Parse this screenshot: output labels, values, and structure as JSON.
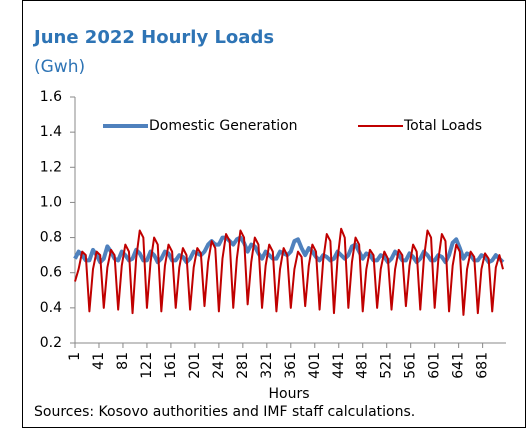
{
  "chart_data": {
    "type": "line",
    "title": "June 2022 Hourly Loads",
    "subtitle": "(Gwh)",
    "xlabel": "Hours",
    "source": "Sources: Kosovo authorities and IMF staff calculations.",
    "xlim": [
      1,
      720
    ],
    "xticks": [
      1,
      41,
      81,
      121,
      161,
      201,
      241,
      281,
      321,
      361,
      401,
      441,
      481,
      521,
      561,
      601,
      641,
      681
    ],
    "ylim": [
      0.2,
      1.6
    ],
    "yticks": [
      0.2,
      0.4,
      0.6,
      0.8,
      {
        "value": 1,
        "label": "1.0"
      },
      1.2,
      1.4,
      1.6
    ],
    "legend": "top",
    "x": [
      1,
      7,
      13,
      19,
      25,
      31,
      37,
      43,
      49,
      55,
      61,
      67,
      73,
      79,
      85,
      91,
      97,
      103,
      109,
      115,
      121,
      127,
      133,
      139,
      145,
      151,
      157,
      163,
      169,
      175,
      181,
      187,
      193,
      199,
      205,
      211,
      217,
      223,
      229,
      235,
      241,
      247,
      253,
      259,
      265,
      271,
      277,
      283,
      289,
      295,
      301,
      307,
      313,
      319,
      325,
      331,
      337,
      343,
      349,
      355,
      361,
      367,
      373,
      379,
      385,
      391,
      397,
      403,
      409,
      415,
      421,
      427,
      433,
      439,
      445,
      451,
      457,
      463,
      469,
      475,
      481,
      487,
      493,
      499,
      505,
      511,
      517,
      523,
      529,
      535,
      541,
      547,
      553,
      559,
      565,
      571,
      577,
      583,
      589,
      595,
      601,
      607,
      613,
      619,
      625,
      631,
      637,
      643,
      649,
      655,
      661,
      667,
      673,
      679,
      685,
      691,
      697,
      703,
      709,
      715
    ],
    "series": [
      {
        "name": "Domestic Generation",
        "color": "#4f81bd",
        "width": 4,
        "values": [
          0.68,
          0.72,
          0.7,
          0.67,
          0.67,
          0.73,
          0.7,
          0.66,
          0.68,
          0.75,
          0.72,
          0.68,
          0.67,
          0.72,
          0.7,
          0.67,
          0.68,
          0.73,
          0.71,
          0.67,
          0.67,
          0.72,
          0.7,
          0.66,
          0.68,
          0.72,
          0.71,
          0.67,
          0.67,
          0.7,
          0.69,
          0.66,
          0.68,
          0.72,
          0.71,
          0.7,
          0.72,
          0.76,
          0.78,
          0.76,
          0.76,
          0.8,
          0.8,
          0.78,
          0.76,
          0.79,
          0.8,
          0.77,
          0.72,
          0.76,
          0.75,
          0.71,
          0.68,
          0.72,
          0.7,
          0.68,
          0.68,
          0.72,
          0.71,
          0.7,
          0.72,
          0.78,
          0.79,
          0.74,
          0.7,
          0.74,
          0.72,
          0.69,
          0.67,
          0.7,
          0.69,
          0.67,
          0.68,
          0.72,
          0.7,
          0.68,
          0.7,
          0.75,
          0.76,
          0.72,
          0.68,
          0.71,
          0.7,
          0.67,
          0.67,
          0.7,
          0.69,
          0.66,
          0.68,
          0.72,
          0.7,
          0.67,
          0.67,
          0.71,
          0.69,
          0.66,
          0.68,
          0.72,
          0.7,
          0.67,
          0.67,
          0.7,
          0.69,
          0.66,
          0.7,
          0.77,
          0.79,
          0.74,
          0.68,
          0.71,
          0.7,
          0.67,
          0.67,
          0.7,
          0.69,
          0.66,
          0.67,
          0.7,
          0.68,
          0.66
        ]
      },
      {
        "name": "Total Loads",
        "color": "#c00000",
        "width": 2,
        "values": [
          0.55,
          0.62,
          0.72,
          0.7,
          0.38,
          0.62,
          0.72,
          0.7,
          0.4,
          0.63,
          0.73,
          0.7,
          0.39,
          0.64,
          0.76,
          0.72,
          0.37,
          0.68,
          0.84,
          0.8,
          0.4,
          0.66,
          0.8,
          0.76,
          0.38,
          0.64,
          0.76,
          0.72,
          0.4,
          0.63,
          0.74,
          0.7,
          0.39,
          0.63,
          0.74,
          0.71,
          0.41,
          0.66,
          0.78,
          0.74,
          0.38,
          0.68,
          0.82,
          0.78,
          0.4,
          0.68,
          0.84,
          0.8,
          0.42,
          0.66,
          0.8,
          0.76,
          0.4,
          0.64,
          0.76,
          0.72,
          0.38,
          0.62,
          0.74,
          0.7,
          0.4,
          0.62,
          0.72,
          0.69,
          0.41,
          0.64,
          0.76,
          0.72,
          0.39,
          0.67,
          0.82,
          0.78,
          0.37,
          0.68,
          0.85,
          0.8,
          0.4,
          0.66,
          0.8,
          0.76,
          0.38,
          0.62,
          0.73,
          0.7,
          0.4,
          0.62,
          0.72,
          0.68,
          0.39,
          0.62,
          0.73,
          0.7,
          0.41,
          0.64,
          0.76,
          0.72,
          0.39,
          0.68,
          0.84,
          0.8,
          0.4,
          0.67,
          0.82,
          0.78,
          0.38,
          0.64,
          0.76,
          0.72,
          0.36,
          0.62,
          0.72,
          0.69,
          0.37,
          0.62,
          0.71,
          0.68,
          0.38,
          0.63,
          0.7,
          0.62
        ]
      }
    ]
  }
}
